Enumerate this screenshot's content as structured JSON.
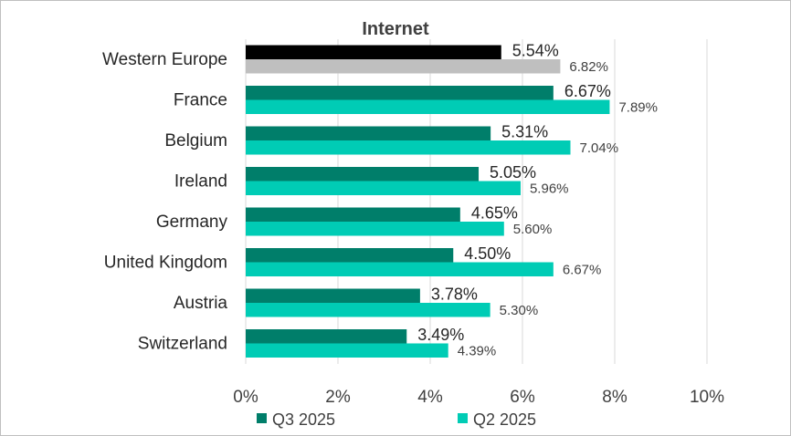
{
  "chart_data": {
    "type": "bar",
    "orientation": "horizontal",
    "title": "Internet",
    "categories": [
      "Western Europe",
      "France",
      "Belgium",
      "Ireland",
      "Germany",
      "United Kingdom",
      "Austria",
      "Switzerland"
    ],
    "series": [
      {
        "name": "Q3 2025",
        "values": [
          5.54,
          6.67,
          5.31,
          5.05,
          4.65,
          4.5,
          3.78,
          3.49
        ],
        "labels": [
          "5.54%",
          "6.67%",
          "5.31%",
          "5.05%",
          "4.65%",
          "4.50%",
          "3.78%",
          "3.49%"
        ],
        "color": "#007e6a",
        "highlight_color": "#000000"
      },
      {
        "name": "Q2 2025",
        "values": [
          6.82,
          7.89,
          7.04,
          5.96,
          5.6,
          6.67,
          5.3,
          4.39
        ],
        "labels": [
          "6.82%",
          "7.89%",
          "7.04%",
          "5.96%",
          "5.60%",
          "6.67%",
          "5.30%",
          "4.39%"
        ],
        "color": "#00ccb5",
        "highlight_color": "#bfbfbf"
      }
    ],
    "xlim": [
      0,
      10
    ],
    "xticks": [
      "0%",
      "2%",
      "4%",
      "6%",
      "8%",
      "10%"
    ],
    "grid": true,
    "legend": "bottom"
  }
}
